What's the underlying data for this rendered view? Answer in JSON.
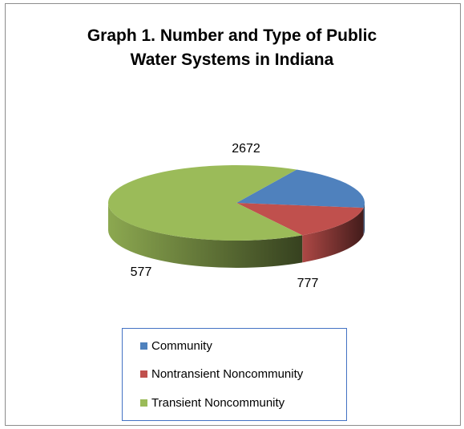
{
  "chart_data": {
    "type": "pie",
    "title_lines": [
      "Graph 1. Number and Type of Public",
      "Water Systems in Indiana"
    ],
    "categories": [
      "Community",
      "Nontransient Noncommunity",
      "Transient Noncommunity"
    ],
    "values": [
      777,
      577,
      2672
    ],
    "data_labels": [
      "777",
      "577",
      "2672"
    ],
    "colors": [
      "#4f81bd",
      "#c0504d",
      "#9bbb59"
    ],
    "legend_position": "bottom",
    "style": "3d-pie"
  }
}
